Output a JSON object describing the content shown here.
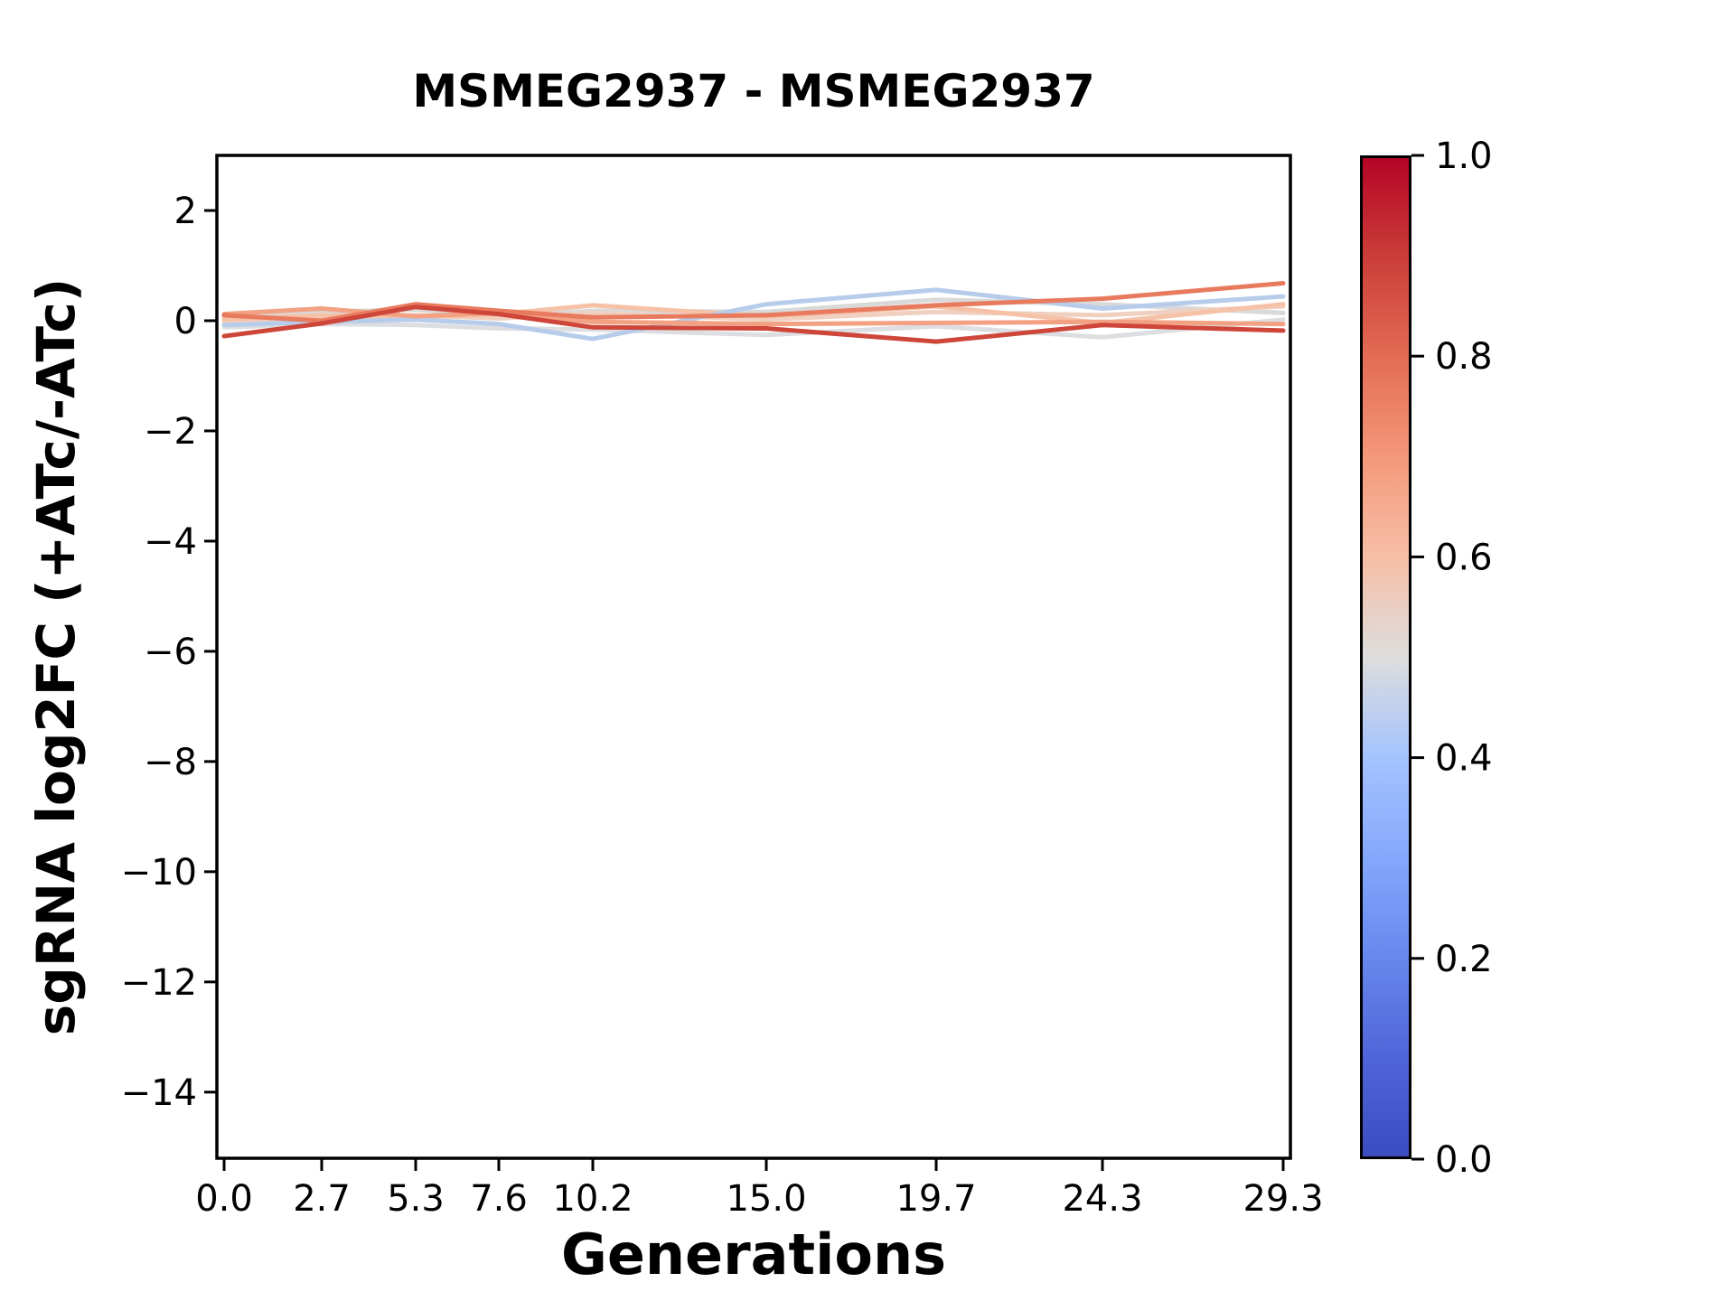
{
  "figure": {
    "title": "MSMEG2937 - MSMEG2937",
    "xlabel": "Generations",
    "ylabel": "sgRNA log2FC (+ATc/-ATc)"
  },
  "chart_data": {
    "type": "line",
    "title": "MSMEG2937 - MSMEG2937",
    "xlabel": "Generations",
    "ylabel": "sgRNA log2FC (+ATc/-ATc)",
    "grid": false,
    "legend": "none (colorbar used)",
    "xlim": [
      -0.2,
      29.5
    ],
    "ylim": [
      -15.2,
      3.0
    ],
    "xticks": {
      "values": [
        0.0,
        2.7,
        5.3,
        7.6,
        10.2,
        15.0,
        19.7,
        24.3,
        29.3
      ],
      "labels": [
        "0.0",
        "2.7",
        "5.3",
        "7.6",
        "10.2",
        "15.0",
        "19.7",
        "24.3",
        "29.3"
      ]
    },
    "yticks": {
      "values": [
        2,
        0,
        -2,
        -4,
        -6,
        -8,
        -10,
        -12,
        -14
      ],
      "labels": [
        "2",
        "0",
        "−2",
        "−4",
        "−6",
        "−8",
        "−10",
        "−12",
        "−14"
      ]
    },
    "x": [
      0.0,
      2.7,
      5.3,
      7.6,
      10.2,
      15.0,
      19.7,
      24.3,
      29.3
    ],
    "series": [
      {
        "name": "line-1",
        "colormap_value": 0.47,
        "color": "#dcdee1",
        "values": [
          -0.12,
          -0.06,
          -0.08,
          -0.14,
          -0.16,
          -0.26,
          -0.1,
          -0.3,
          0.02
        ]
      },
      {
        "name": "line-2",
        "colormap_value": 0.51,
        "color": "#d9d9d9",
        "values": [
          0.06,
          0.16,
          0.2,
          0.08,
          0.18,
          0.16,
          0.38,
          0.3,
          0.14
        ]
      },
      {
        "name": "line-3",
        "colormap_value": 0.56,
        "color": "#f0d0c0",
        "values": [
          -0.04,
          0.04,
          0.1,
          0.04,
          0.14,
          0.02,
          0.16,
          0.1,
          0.26
        ]
      },
      {
        "name": "line-4",
        "colormap_value": 0.62,
        "color": "#f6c2a7",
        "values": [
          0.02,
          0.1,
          0.06,
          0.12,
          0.28,
          0.08,
          0.26,
          -0.04,
          0.3
        ]
      },
      {
        "name": "line-5",
        "colormap_value": 0.4,
        "color": "#b7cceb",
        "values": [
          -0.08,
          -0.02,
          0.02,
          -0.06,
          -0.33,
          0.3,
          0.56,
          0.22,
          0.44
        ]
      },
      {
        "name": "line-6",
        "colormap_value": 0.7,
        "color": "#f2a183",
        "values": [
          0.12,
          0.22,
          0.08,
          0.14,
          -0.02,
          -0.06,
          -0.04,
          -0.02,
          -0.06
        ]
      },
      {
        "name": "line-7",
        "colormap_value": 0.8,
        "color": "#e87a5e",
        "values": [
          0.1,
          0.0,
          0.3,
          0.18,
          0.06,
          0.1,
          0.28,
          0.4,
          0.68
        ]
      },
      {
        "name": "line-8",
        "colormap_value": 0.9,
        "color": "#cd4639",
        "values": [
          -0.28,
          -0.05,
          0.25,
          0.12,
          -0.12,
          -0.14,
          -0.38,
          -0.08,
          -0.18
        ]
      }
    ],
    "colorbar": {
      "orientation": "vertical",
      "colormap": "coolwarm",
      "range": [
        0.0,
        1.0
      ],
      "ticks": {
        "values": [
          0.0,
          0.2,
          0.4,
          0.6,
          0.8,
          1.0
        ],
        "labels": [
          "0.0",
          "0.2",
          "0.4",
          "0.6",
          "0.8",
          "1.0"
        ]
      },
      "gradient": [
        {
          "at": 0.0,
          "color": "#3b4cc0"
        },
        {
          "at": 0.1,
          "color": "#5065d9"
        },
        {
          "at": 0.2,
          "color": "#6788ee"
        },
        {
          "at": 0.3,
          "color": "#85a8fc"
        },
        {
          "at": 0.4,
          "color": "#a5c3fe"
        },
        {
          "at": 0.5,
          "color": "#dddddd"
        },
        {
          "at": 0.6,
          "color": "#f6bfa6"
        },
        {
          "at": 0.7,
          "color": "#f4987a"
        },
        {
          "at": 0.8,
          "color": "#e36c55"
        },
        {
          "at": 0.9,
          "color": "#cb3e38"
        },
        {
          "at": 1.0,
          "color": "#b40426"
        }
      ]
    },
    "style": {
      "line_width": 5,
      "spine_width": 3.5,
      "tick_length": 14,
      "tick_width": 3,
      "tick_font_size": 40,
      "axes_color": "#000000",
      "background": "#ffffff"
    }
  }
}
